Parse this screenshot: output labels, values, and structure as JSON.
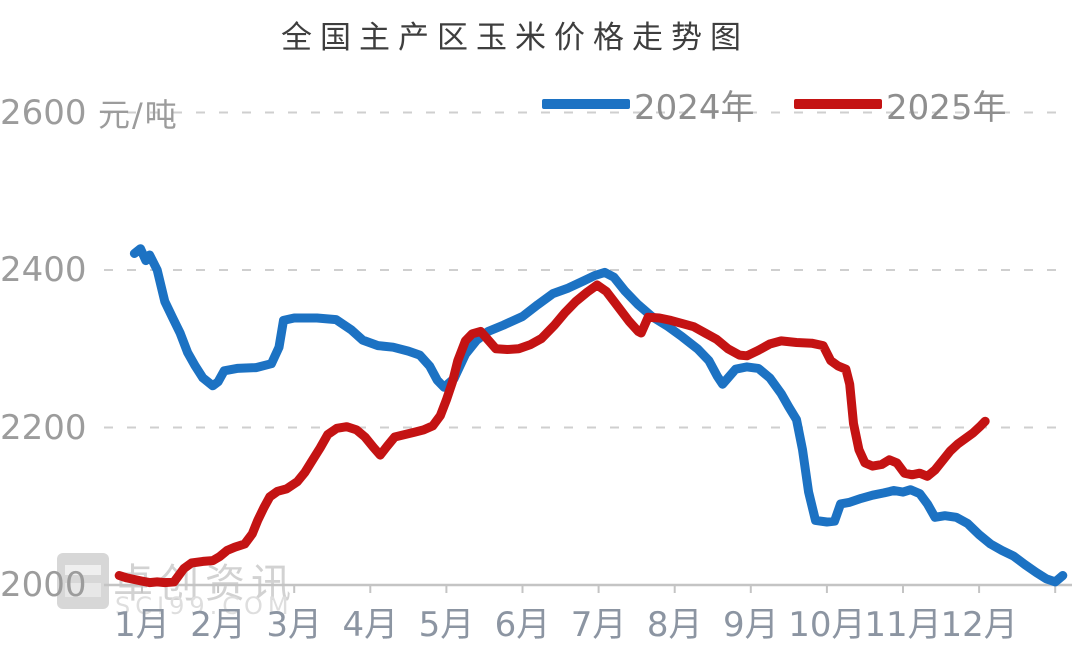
{
  "watermark": {
    "name": "卓创资讯",
    "site": "SCI99.COM"
  },
  "chart_data": {
    "type": "line",
    "title": "全国主产区玉米价格走势图",
    "ylabel": "元/吨",
    "ylim": [
      2000,
      2600
    ],
    "y_ticks": [
      2000,
      2200,
      2400,
      2600
    ],
    "x_labels": [
      "1月",
      "2月",
      "3月",
      "4月",
      "5月",
      "6月",
      "7月",
      "8月",
      "9月",
      "10月",
      "11月",
      "12月"
    ],
    "x_unit": "month_index (0 = 1月 Jan, 11 = 12月 Dec)",
    "grid": "horizontal dashed gridlines",
    "legend_position": "top",
    "axis_color": "#c4c4c4",
    "grid_color": "#cfcfcf",
    "series": [
      {
        "name": "2024年",
        "color": "#1c72c3",
        "points": [
          [
            -0.1,
            2421
          ],
          [
            -0.02,
            2427
          ],
          [
            0.05,
            2412
          ],
          [
            0.1,
            2419
          ],
          [
            0.2,
            2400
          ],
          [
            0.3,
            2360
          ],
          [
            0.4,
            2340
          ],
          [
            0.5,
            2320
          ],
          [
            0.6,
            2295
          ],
          [
            0.7,
            2278
          ],
          [
            0.8,
            2263
          ],
          [
            0.93,
            2253
          ],
          [
            1.0,
            2258
          ],
          [
            1.08,
            2272
          ],
          [
            1.25,
            2275
          ],
          [
            1.5,
            2276
          ],
          [
            1.7,
            2281
          ],
          [
            1.8,
            2302
          ],
          [
            1.86,
            2336
          ],
          [
            2.0,
            2339
          ],
          [
            2.3,
            2339
          ],
          [
            2.55,
            2337
          ],
          [
            2.75,
            2324
          ],
          [
            2.9,
            2311
          ],
          [
            3.1,
            2304
          ],
          [
            3.3,
            2302
          ],
          [
            3.5,
            2297
          ],
          [
            3.65,
            2292
          ],
          [
            3.78,
            2278
          ],
          [
            3.88,
            2260
          ],
          [
            3.97,
            2251
          ],
          [
            4.1,
            2262
          ],
          [
            4.25,
            2293
          ],
          [
            4.4,
            2311
          ],
          [
            4.55,
            2322
          ],
          [
            4.75,
            2330
          ],
          [
            5.0,
            2341
          ],
          [
            5.2,
            2356
          ],
          [
            5.4,
            2370
          ],
          [
            5.6,
            2377
          ],
          [
            5.8,
            2386
          ],
          [
            5.95,
            2393
          ],
          [
            6.08,
            2397
          ],
          [
            6.2,
            2391
          ],
          [
            6.35,
            2373
          ],
          [
            6.52,
            2356
          ],
          [
            6.7,
            2341
          ],
          [
            6.9,
            2329
          ],
          [
            7.1,
            2315
          ],
          [
            7.3,
            2300
          ],
          [
            7.45,
            2285
          ],
          [
            7.56,
            2265
          ],
          [
            7.63,
            2255
          ],
          [
            7.8,
            2274
          ],
          [
            7.95,
            2277
          ],
          [
            8.1,
            2275
          ],
          [
            8.25,
            2263
          ],
          [
            8.4,
            2243
          ],
          [
            8.5,
            2226
          ],
          [
            8.6,
            2210
          ],
          [
            8.68,
            2172
          ],
          [
            8.76,
            2118
          ],
          [
            8.85,
            2082
          ],
          [
            9.0,
            2080
          ],
          [
            9.1,
            2081
          ],
          [
            9.18,
            2103
          ],
          [
            9.3,
            2105
          ],
          [
            9.45,
            2110
          ],
          [
            9.6,
            2114
          ],
          [
            9.75,
            2117
          ],
          [
            9.88,
            2120
          ],
          [
            10.0,
            2118
          ],
          [
            10.1,
            2121
          ],
          [
            10.22,
            2116
          ],
          [
            10.32,
            2103
          ],
          [
            10.42,
            2086
          ],
          [
            10.55,
            2088
          ],
          [
            10.7,
            2086
          ],
          [
            10.85,
            2078
          ],
          [
            11.0,
            2064
          ],
          [
            11.15,
            2052
          ],
          [
            11.3,
            2044
          ],
          [
            11.45,
            2037
          ],
          [
            11.6,
            2026
          ],
          [
            11.75,
            2016
          ],
          [
            11.88,
            2008
          ],
          [
            12.0,
            2004
          ],
          [
            12.1,
            2012
          ]
        ]
      },
      {
        "name": "2025年",
        "color": "#c41313",
        "points": [
          [
            -0.3,
            2012
          ],
          [
            -0.2,
            2009
          ],
          [
            -0.1,
            2007
          ],
          [
            0.0,
            2005
          ],
          [
            0.1,
            2003
          ],
          [
            0.2,
            2004
          ],
          [
            0.3,
            2003
          ],
          [
            0.42,
            2004
          ],
          [
            0.55,
            2021
          ],
          [
            0.65,
            2028
          ],
          [
            0.8,
            2030
          ],
          [
            0.93,
            2031
          ],
          [
            1.02,
            2036
          ],
          [
            1.12,
            2044
          ],
          [
            1.22,
            2048
          ],
          [
            1.35,
            2052
          ],
          [
            1.45,
            2065
          ],
          [
            1.52,
            2082
          ],
          [
            1.6,
            2098
          ],
          [
            1.68,
            2112
          ],
          [
            1.78,
            2119
          ],
          [
            1.9,
            2122
          ],
          [
            2.04,
            2131
          ],
          [
            2.14,
            2143
          ],
          [
            2.25,
            2160
          ],
          [
            2.34,
            2174
          ],
          [
            2.44,
            2191
          ],
          [
            2.56,
            2199
          ],
          [
            2.69,
            2201
          ],
          [
            2.82,
            2197
          ],
          [
            2.93,
            2188
          ],
          [
            3.04,
            2175
          ],
          [
            3.13,
            2165
          ],
          [
            3.22,
            2176
          ],
          [
            3.32,
            2188
          ],
          [
            3.45,
            2191
          ],
          [
            3.58,
            2194
          ],
          [
            3.7,
            2197
          ],
          [
            3.82,
            2202
          ],
          [
            3.92,
            2215
          ],
          [
            4.0,
            2235
          ],
          [
            4.08,
            2258
          ],
          [
            4.15,
            2285
          ],
          [
            4.25,
            2310
          ],
          [
            4.34,
            2319
          ],
          [
            4.45,
            2322
          ],
          [
            4.55,
            2311
          ],
          [
            4.65,
            2300
          ],
          [
            4.8,
            2299
          ],
          [
            4.95,
            2300
          ],
          [
            5.1,
            2305
          ],
          [
            5.25,
            2313
          ],
          [
            5.42,
            2330
          ],
          [
            5.55,
            2345
          ],
          [
            5.7,
            2360
          ],
          [
            5.85,
            2372
          ],
          [
            5.98,
            2381
          ],
          [
            6.1,
            2373
          ],
          [
            6.22,
            2358
          ],
          [
            6.4,
            2335
          ],
          [
            6.52,
            2322
          ],
          [
            6.56,
            2320
          ],
          [
            6.65,
            2340
          ],
          [
            6.8,
            2339
          ],
          [
            6.95,
            2336
          ],
          [
            7.1,
            2332
          ],
          [
            7.25,
            2328
          ],
          [
            7.4,
            2320
          ],
          [
            7.55,
            2312
          ],
          [
            7.7,
            2300
          ],
          [
            7.85,
            2292
          ],
          [
            7.95,
            2291
          ],
          [
            8.1,
            2298
          ],
          [
            8.25,
            2306
          ],
          [
            8.4,
            2310
          ],
          [
            8.6,
            2308
          ],
          [
            8.8,
            2307
          ],
          [
            8.95,
            2304
          ],
          [
            9.05,
            2285
          ],
          [
            9.15,
            2278
          ],
          [
            9.25,
            2274
          ],
          [
            9.3,
            2255
          ],
          [
            9.35,
            2205
          ],
          [
            9.42,
            2172
          ],
          [
            9.5,
            2155
          ],
          [
            9.6,
            2151
          ],
          [
            9.72,
            2153
          ],
          [
            9.82,
            2159
          ],
          [
            9.92,
            2155
          ],
          [
            10.02,
            2142
          ],
          [
            10.12,
            2140
          ],
          [
            10.22,
            2142
          ],
          [
            10.32,
            2138
          ],
          [
            10.42,
            2146
          ],
          [
            10.52,
            2158
          ],
          [
            10.62,
            2170
          ],
          [
            10.72,
            2179
          ],
          [
            10.82,
            2186
          ],
          [
            10.92,
            2193
          ],
          [
            11.02,
            2202
          ],
          [
            11.08,
            2208
          ]
        ]
      }
    ]
  }
}
